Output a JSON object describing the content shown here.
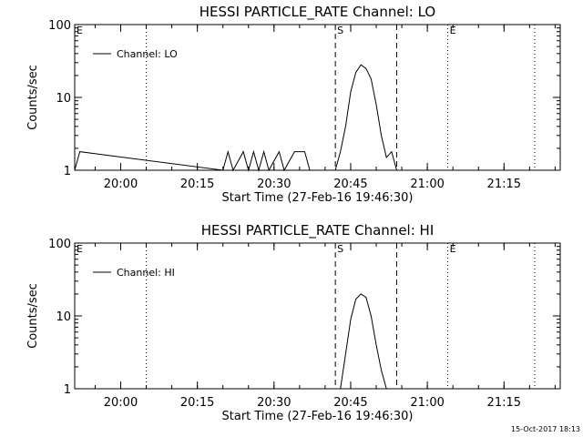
{
  "footer_timestamp": "15-Oct-2017 18:13",
  "chart_data": [
    {
      "type": "line",
      "title": "HESSI PARTICLE_RATE Channel: LO",
      "xlabel": "Start Time (27-Feb-16 19:46:30)",
      "ylabel": "Counts/sec",
      "y_scale": "log",
      "ylim": [
        1,
        100
      ],
      "y_ticks": [
        "1",
        "10",
        "100"
      ],
      "x_ticks": [
        "20:00",
        "20:15",
        "20:30",
        "20:45",
        "21:00",
        "21:15"
      ],
      "xlim": [
        "19:51",
        "21:26"
      ],
      "legend": {
        "label": "Channel: LO",
        "position": "top-left"
      },
      "markers": [
        {
          "label": "E",
          "time": "19:51",
          "style": "none"
        },
        {
          "label": "",
          "time": "20:05",
          "style": "dotted"
        },
        {
          "label": "S",
          "time": "20:42",
          "style": "dashed"
        },
        {
          "label": "",
          "time": "20:54",
          "style": "dashed"
        },
        {
          "label": "E",
          "time": "21:04",
          "style": "dotted"
        },
        {
          "label": "",
          "time": "21:21",
          "style": "dotted"
        }
      ],
      "series": [
        {
          "name": "Channel: LO",
          "x": [
            "19:51",
            "19:52",
            "20:20",
            "20:21",
            "20:22",
            "20:24",
            "20:25",
            "20:26",
            "20:27",
            "20:28",
            "20:29",
            "20:31",
            "20:32",
            "20:34",
            "20:35",
            "20:36",
            "20:37",
            "20:38",
            "20:42",
            "20:43",
            "20:44",
            "20:45",
            "20:46",
            "20:47",
            "20:48",
            "20:49",
            "20:50",
            "20:51",
            "20:52",
            "20:53",
            "20:54"
          ],
          "values": [
            1,
            1.8,
            1,
            1.8,
            1,
            1.8,
            1,
            1.8,
            1,
            1.8,
            1,
            1.8,
            1,
            1.8,
            1.8,
            1.8,
            1,
            1,
            1,
            1.8,
            4,
            12,
            22,
            28,
            25,
            18,
            8,
            3,
            1.5,
            1.8,
            1
          ]
        }
      ]
    },
    {
      "type": "line",
      "title": "HESSI PARTICLE_RATE Channel: HI",
      "xlabel": "Start Time (27-Feb-16 19:46:30)",
      "ylabel": "Counts/sec",
      "y_scale": "log",
      "ylim": [
        1,
        100
      ],
      "y_ticks": [
        "1",
        "10",
        "100"
      ],
      "x_ticks": [
        "20:00",
        "20:15",
        "20:30",
        "20:45",
        "21:00",
        "21:15"
      ],
      "xlim": [
        "19:51",
        "21:26"
      ],
      "legend": {
        "label": "Channel: HI",
        "position": "top-left"
      },
      "markers": [
        {
          "label": "E",
          "time": "19:51",
          "style": "none"
        },
        {
          "label": "",
          "time": "20:05",
          "style": "dotted"
        },
        {
          "label": "S",
          "time": "20:42",
          "style": "dashed"
        },
        {
          "label": "",
          "time": "20:54",
          "style": "dashed"
        },
        {
          "label": "E",
          "time": "21:04",
          "style": "dotted"
        },
        {
          "label": "",
          "time": "21:21",
          "style": "dotted"
        }
      ],
      "series": [
        {
          "name": "Channel: HI",
          "x": [
            "20:43",
            "20:44",
            "20:45",
            "20:46",
            "20:47",
            "20:48",
            "20:49",
            "20:50",
            "20:51",
            "20:52"
          ],
          "values": [
            1,
            3,
            9,
            17,
            20,
            18,
            10,
            4,
            1.8,
            1
          ]
        }
      ]
    }
  ]
}
